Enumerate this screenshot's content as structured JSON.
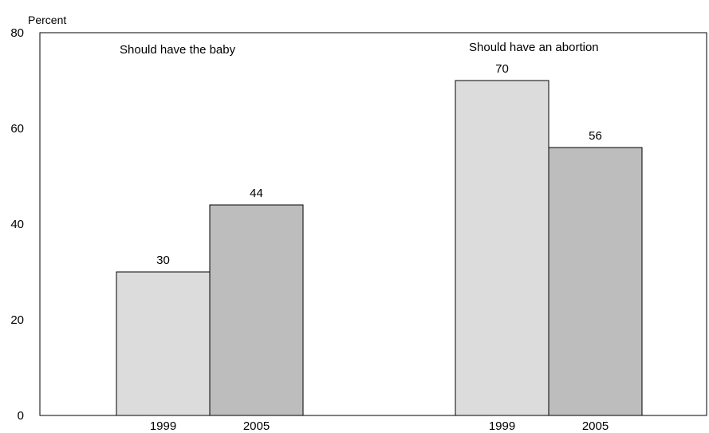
{
  "chart_data": {
    "type": "bar",
    "ylabel": "Percent",
    "ylim": [
      0,
      80
    ],
    "yticks": [
      0,
      20,
      40,
      60,
      80
    ],
    "grid": false,
    "groups": [
      {
        "label": "Should have the baby",
        "bars": [
          {
            "category": "1999",
            "value": 30,
            "color": "#dcdcdc"
          },
          {
            "category": "2005",
            "value": 44,
            "color": "#bdbdbd"
          }
        ]
      },
      {
        "label": "Should have an abortion",
        "bars": [
          {
            "category": "1999",
            "value": 70,
            "color": "#dcdcdc"
          },
          {
            "category": "2005",
            "value": 56,
            "color": "#bdbdbd"
          }
        ]
      }
    ]
  }
}
